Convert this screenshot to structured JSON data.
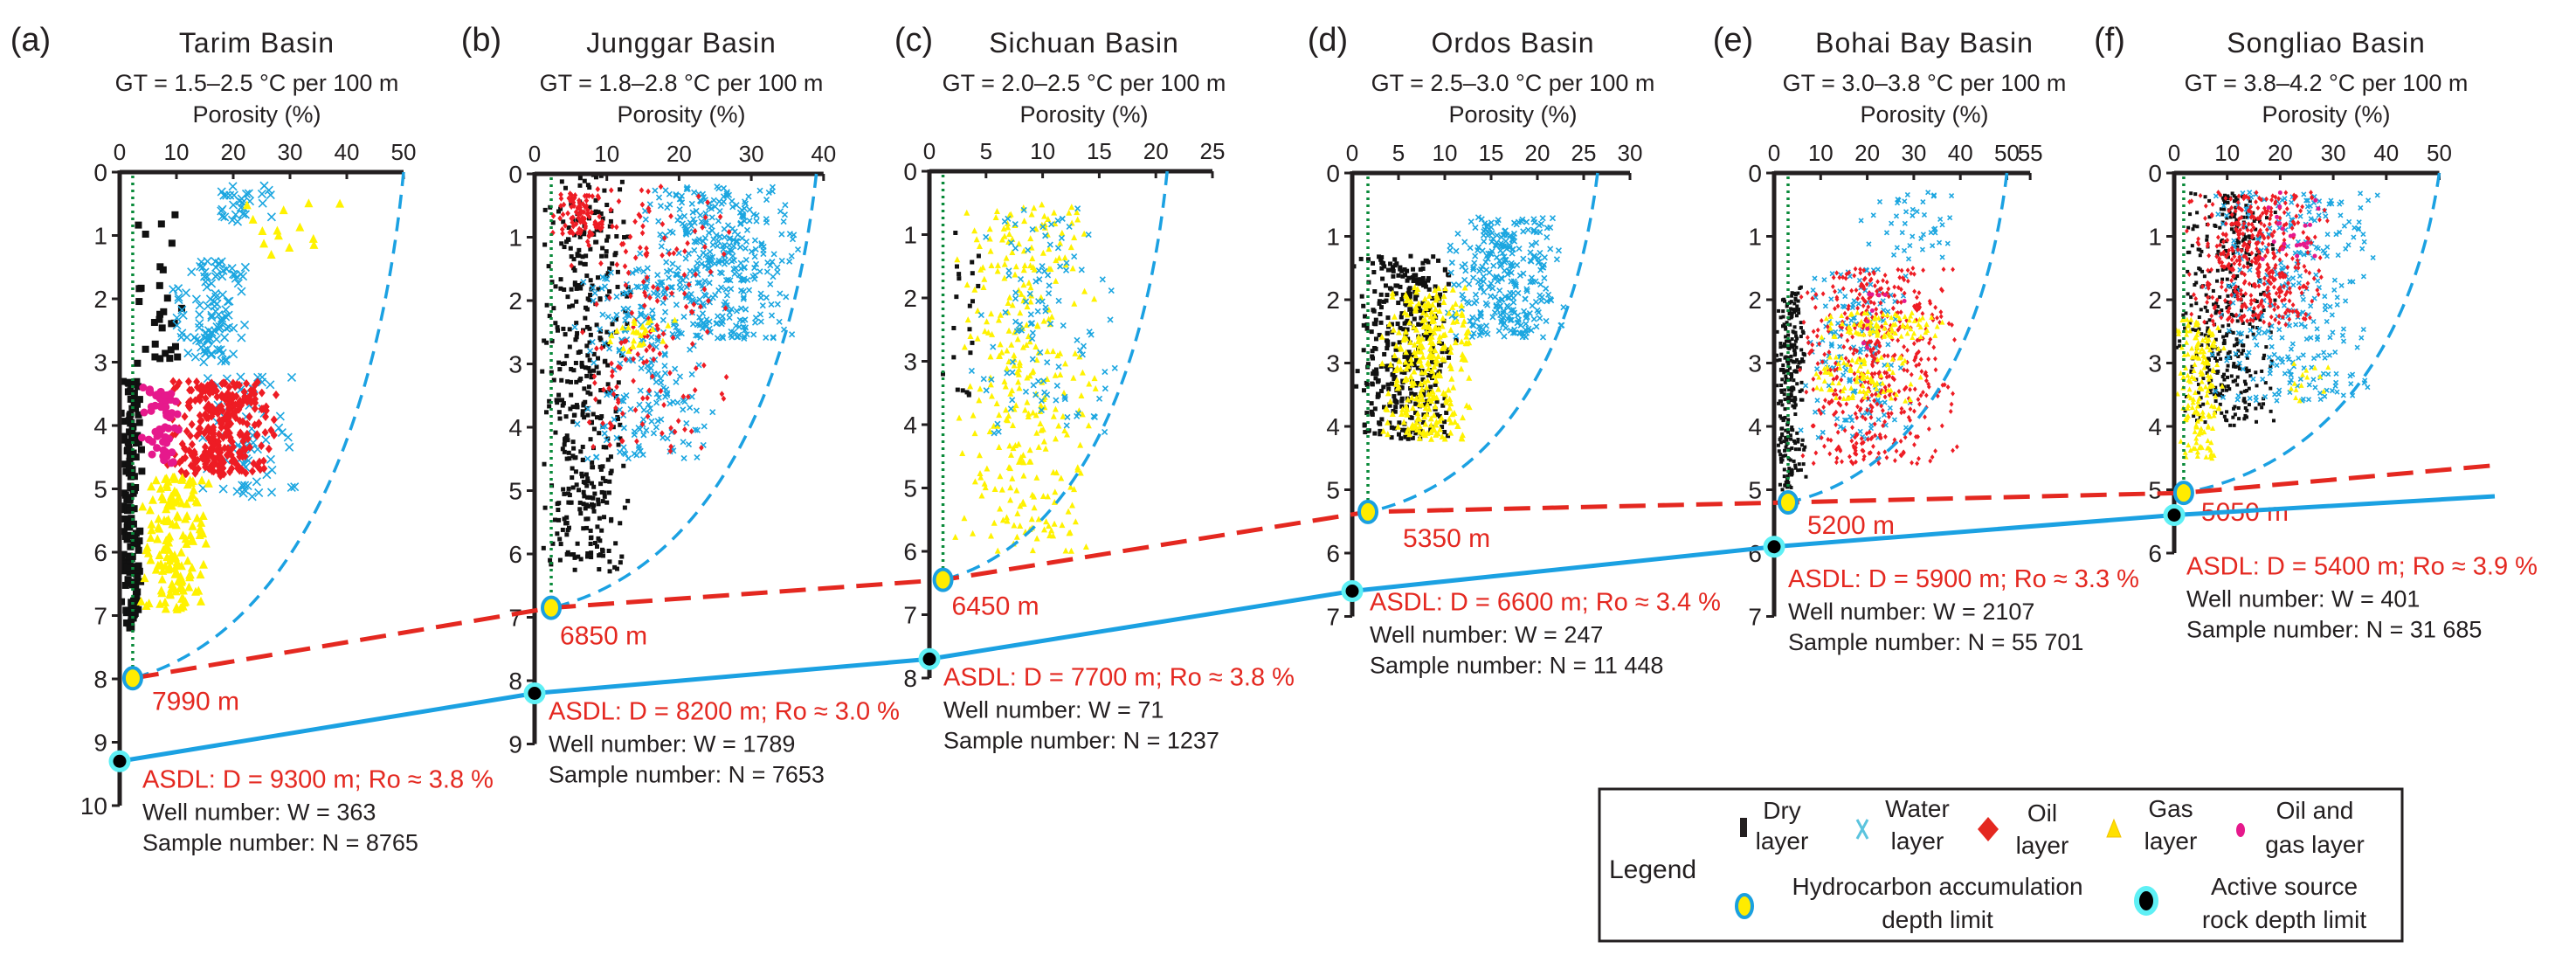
{
  "legend": {
    "title": "Legend",
    "items": [
      {
        "key": "dry",
        "lines": [
          "Dry",
          "layer"
        ],
        "color": "#111111",
        "icon": "square-icon"
      },
      {
        "key": "water",
        "lines": [
          "Water",
          "layer"
        ],
        "color": "#1ba6e0",
        "icon": "cross-icon"
      },
      {
        "key": "oil",
        "lines": [
          "Oil",
          "layer"
        ],
        "color": "#ee1c24",
        "icon": "diamond-icon"
      },
      {
        "key": "gas",
        "lines": [
          "Gas",
          "layer"
        ],
        "color": "#fff200",
        "icon": "triangle-icon"
      },
      {
        "key": "oilgas",
        "lines": [
          "Oil and",
          "gas layer"
        ],
        "color": "#e6198c",
        "icon": "circle-icon"
      }
    ],
    "limits": [
      {
        "key": "hadl",
        "lines": [
          "Hydrocarbon accumulation",
          "depth limit"
        ],
        "fill": "#ffec00",
        "stroke": "#1aa0e0"
      },
      {
        "key": "asdl",
        "lines": [
          "Active source",
          "rock depth limit"
        ],
        "fill": "#000000",
        "stroke": "#5ef0f5"
      }
    ]
  },
  "colors": {
    "hadl_line": "#e42820",
    "asdl_line": "#1ba1e2",
    "envelope": "#1ba1e2",
    "cutoff": "#0a8a3a"
  },
  "chart_data": [
    {
      "type": "scatter",
      "panel_label": "(a)",
      "title": "Tarim Basin",
      "gt": "GT = 1.5–2.5 °C per 100 m",
      "xlabel": "Porosity (%)",
      "xlim": [
        0,
        50
      ],
      "ylim": [
        0,
        10
      ],
      "xticks": [
        0,
        10,
        20,
        30,
        40,
        50
      ],
      "yticks": [
        0,
        1,
        2,
        3,
        4,
        5,
        6,
        7,
        8,
        9,
        10
      ],
      "cutoff_porosity": 2.3,
      "envelope_top_porosity": 50,
      "hadl_m": 7990,
      "hadl_label": "7990 m",
      "asdl_m": 9300,
      "asdl_text": "ASDL: D = 9300 m; Ro ≈ 3.8 %",
      "well_text": "Well number: W = 363",
      "sample_text": "Sample number: N = 8765",
      "clusters": [
        {
          "layer": "dry",
          "porosity": [
            0,
            4
          ],
          "depth_km": [
            3.3,
            7.2
          ],
          "n": 160
        },
        {
          "layer": "dry",
          "porosity": [
            1,
            13
          ],
          "depth_km": [
            0.6,
            3.2
          ],
          "n": 30
        },
        {
          "layer": "water",
          "porosity": [
            9,
            23
          ],
          "depth_km": [
            1.4,
            3.0
          ],
          "n": 110
        },
        {
          "layer": "water",
          "porosity": [
            15,
            28
          ],
          "depth_km": [
            0.2,
            0.8
          ],
          "n": 30
        },
        {
          "layer": "water",
          "porosity": [
            14,
            31
          ],
          "depth_km": [
            3.2,
            5.2
          ],
          "n": 70
        },
        {
          "layer": "oil",
          "porosity": [
            8,
            28
          ],
          "depth_km": [
            3.3,
            4.8
          ],
          "n": 320
        },
        {
          "layer": "oilgas",
          "porosity": [
            3,
            11
          ],
          "depth_km": [
            3.4,
            4.6
          ],
          "n": 60
        },
        {
          "layer": "gas",
          "porosity": [
            3,
            16
          ],
          "depth_km": [
            4.8,
            6.9
          ],
          "n": 150
        },
        {
          "layer": "gas",
          "porosity": [
            20,
            41
          ],
          "depth_km": [
            0.4,
            1.3
          ],
          "n": 14
        }
      ]
    },
    {
      "type": "scatter",
      "panel_label": "(b)",
      "title": "Junggar Basin",
      "gt": "GT = 1.8–2.8 °C per 100 m",
      "xlabel": "Porosity (%)",
      "xlim": [
        0,
        40
      ],
      "ylim": [
        0,
        9
      ],
      "xticks": [
        0,
        10,
        20,
        30,
        40
      ],
      "yticks": [
        0,
        1,
        2,
        3,
        4,
        5,
        6,
        7,
        8,
        9
      ],
      "cutoff_porosity": 2.3,
      "envelope_top_porosity": 39,
      "hadl_m": 6850,
      "hadl_label": "6850 m",
      "asdl_m": 8200,
      "asdl_text": "ASDL: D = 8200 m; Ro ≈ 3.0 %",
      "well_text": "Well number: W = 1789",
      "sample_text": "Sample number: N = 7653",
      "clusters": [
        {
          "layer": "dry",
          "porosity": [
            0,
            14
          ],
          "depth_km": [
            0,
            6.3
          ],
          "n": 420
        },
        {
          "layer": "water",
          "porosity": [
            14,
            37
          ],
          "depth_km": [
            0.2,
            2.6
          ],
          "n": 380
        },
        {
          "layer": "water",
          "porosity": [
            5,
            25
          ],
          "depth_km": [
            1.5,
            4.5
          ],
          "n": 220
        },
        {
          "layer": "oil",
          "porosity": [
            2,
            10
          ],
          "depth_km": [
            0.3,
            1.0
          ],
          "n": 90
        },
        {
          "layer": "oil",
          "porosity": [
            4,
            28
          ],
          "depth_km": [
            0.2,
            4.4
          ],
          "n": 170
        },
        {
          "layer": "gas",
          "porosity": [
            8,
            20
          ],
          "depth_km": [
            2.3,
            2.8
          ],
          "n": 30
        }
      ]
    },
    {
      "type": "scatter",
      "panel_label": "(c)",
      "title": "Sichuan Basin",
      "gt": "GT = 2.0–2.5 °C per 100 m",
      "xlabel": "Porosity (%)",
      "xlim": [
        0,
        25
      ],
      "ylim": [
        0,
        8
      ],
      "xticks": [
        0,
        5,
        10,
        15,
        20,
        25
      ],
      "yticks": [
        0,
        1,
        2,
        3,
        4,
        5,
        6,
        7,
        8
      ],
      "cutoff_porosity": 1.2,
      "envelope_top_porosity": 21,
      "hadl_m": 6450,
      "hadl_label": "6450 m",
      "asdl_m": 7700,
      "asdl_text": "ASDL: D = 7700 m; Ro ≈ 3.8 %",
      "well_text": "Well number: W = 71",
      "sample_text": "Sample number: N = 1237",
      "clusters": [
        {
          "layer": "gas",
          "porosity": [
            2,
            15
          ],
          "depth_km": [
            0.5,
            6.0
          ],
          "n": 320
        },
        {
          "layer": "water",
          "porosity": [
            3,
            17
          ],
          "depth_km": [
            0.5,
            4.2
          ],
          "n": 110
        },
        {
          "layer": "dry",
          "porosity": [
            1,
            5
          ],
          "depth_km": [
            0.8,
            4.0
          ],
          "n": 22
        }
      ]
    },
    {
      "type": "scatter",
      "panel_label": "(d)",
      "title": "Ordos Basin",
      "gt": "GT = 2.5–3.0 °C per 100 m",
      "xlabel": "Porosity (%)",
      "xlim": [
        0,
        30
      ],
      "ylim": [
        0,
        7
      ],
      "xticks": [
        0,
        5,
        10,
        15,
        20,
        25,
        30
      ],
      "yticks": [
        0,
        1,
        2,
        3,
        4,
        5,
        6,
        7
      ],
      "cutoff_porosity": 1.7,
      "envelope_top_porosity": 26.5,
      "hadl_m": 5350,
      "hadl_label": "5350 m",
      "asdl_m": 6600,
      "asdl_text": "ASDL: D = 6600 m; Ro ≈ 3.4 %",
      "well_text": "Well number: W = 247",
      "sample_text": "Sample number: N = 11 448",
      "clusters": [
        {
          "layer": "dry",
          "porosity": [
            0,
            12
          ],
          "depth_km": [
            1.3,
            4.2
          ],
          "n": 380
        },
        {
          "layer": "water",
          "porosity": [
            10,
            23
          ],
          "depth_km": [
            0.7,
            2.6
          ],
          "n": 300
        },
        {
          "layer": "gas",
          "porosity": [
            3,
            14
          ],
          "depth_km": [
            1.8,
            4.2
          ],
          "n": 300
        }
      ]
    },
    {
      "type": "scatter",
      "panel_label": "(e)",
      "title": "Bohai Bay Basin",
      "gt": "GT = 3.0–3.8 °C per 100 m",
      "xlabel": "Porosity (%)",
      "xlim": [
        0,
        55
      ],
      "ylim": [
        0,
        7
      ],
      "xticks": [
        0,
        10,
        20,
        30,
        40,
        50,
        55
      ],
      "yticks": [
        0,
        1,
        2,
        3,
        4,
        5,
        6,
        7
      ],
      "cutoff_porosity": 3,
      "envelope_top_porosity": 50,
      "hadl_m": 5200,
      "hadl_label": "5200 m",
      "asdl_m": 5900,
      "asdl_text": "ASDL: D = 5900 m; Ro ≈ 3.3 %",
      "well_text": "Well number: W = 2107",
      "sample_text": "Sample number: N = 55 701",
      "clusters": [
        {
          "layer": "dry",
          "porosity": [
            0,
            7
          ],
          "depth_km": [
            1.8,
            5.0
          ],
          "n": 260
        },
        {
          "layer": "water",
          "porosity": [
            18,
            40
          ],
          "depth_km": [
            0.3,
            1.4
          ],
          "n": 45
        },
        {
          "layer": "water",
          "porosity": [
            4,
            32
          ],
          "depth_km": [
            1.5,
            4.2
          ],
          "n": 150
        },
        {
          "layer": "oil",
          "porosity": [
            4,
            40
          ],
          "depth_km": [
            1.5,
            4.6
          ],
          "n": 480
        },
        {
          "layer": "gas",
          "porosity": [
            8,
            38
          ],
          "depth_km": [
            2.2,
            2.6
          ],
          "n": 90
        },
        {
          "layer": "gas",
          "porosity": [
            6,
            32
          ],
          "depth_km": [
            2.9,
            3.6
          ],
          "n": 90
        },
        {
          "layer": "oilgas",
          "porosity": [
            15,
            30
          ],
          "depth_km": [
            1.6,
            2.8
          ],
          "n": 10
        }
      ]
    },
    {
      "type": "scatter",
      "panel_label": "(f)",
      "title": "Songliao Basin",
      "gt": "GT = 3.8–4.2 °C per 100 m",
      "xlabel": "Porosity (%)",
      "xlim": [
        0,
        50
      ],
      "ylim": [
        0,
        6
      ],
      "xticks": [
        0,
        10,
        20,
        30,
        40,
        50
      ],
      "yticks": [
        0,
        1,
        2,
        3,
        4,
        5,
        6
      ],
      "cutoff_porosity": 1.8,
      "envelope_top_porosity": 50,
      "hadl_m": 5050,
      "hadl_label": "5050 m",
      "asdl_m": 5400,
      "asdl_text": "ASDL: D = 5400 m; Ro ≈ 3.9 %",
      "well_text": "Well number: W = 401",
      "sample_text": "Sample number: N = 31 685",
      "clusters": [
        {
          "layer": "dry",
          "porosity": [
            0,
            20
          ],
          "depth_km": [
            0.3,
            4.0
          ],
          "n": 380
        },
        {
          "layer": "water",
          "porosity": [
            5,
            40
          ],
          "depth_km": [
            0.3,
            3.6
          ],
          "n": 300
        },
        {
          "layer": "oil",
          "porosity": [
            2,
            30
          ],
          "depth_km": [
            0.3,
            2.4
          ],
          "n": 420
        },
        {
          "layer": "gas",
          "porosity": [
            0,
            10
          ],
          "depth_km": [
            2.3,
            4.5
          ],
          "n": 170
        },
        {
          "layer": "gas",
          "porosity": [
            20,
            30
          ],
          "depth_km": [
            3.0,
            3.6
          ],
          "n": 14
        },
        {
          "layer": "oilgas",
          "porosity": [
            15,
            30
          ],
          "depth_km": [
            0.3,
            1.5
          ],
          "n": 25
        }
      ]
    }
  ]
}
